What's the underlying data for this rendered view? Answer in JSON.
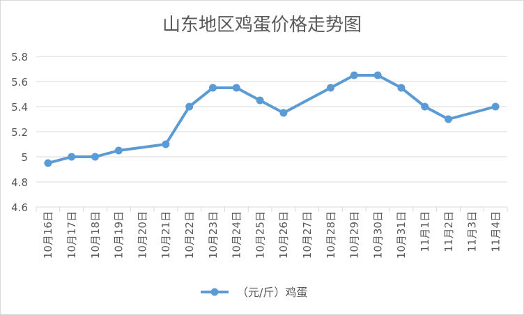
{
  "chart_data": {
    "type": "line",
    "title": "山东地区鸡蛋价格走势图",
    "categories": [
      "10月16日",
      "10月17日",
      "10月18日",
      "10月19日",
      "10月20日",
      "10月21日",
      "10月22日",
      "10月23日",
      "10月24日",
      "10月25日",
      "10月26日",
      "10月27日",
      "10月28日",
      "10月29日",
      "10月30日",
      "10月31日",
      "11月1日",
      "11月2日",
      "11月3日",
      "11月4日"
    ],
    "y_ticks": [
      "4.6",
      "4.8",
      "5",
      "5.2",
      "5.4",
      "5.6",
      "5.8"
    ],
    "ylim": [
      4.6,
      5.8
    ],
    "grid": true,
    "legend_position": "bottom",
    "series": [
      {
        "name": "（元/斤）鸡蛋",
        "color": "#5b9bd5",
        "values": [
          4.95,
          5.0,
          5.0,
          5.05,
          null,
          5.1,
          5.4,
          5.55,
          5.55,
          5.45,
          5.35,
          null,
          5.55,
          5.65,
          5.65,
          5.55,
          5.4,
          5.3,
          null,
          5.4
        ]
      }
    ]
  }
}
